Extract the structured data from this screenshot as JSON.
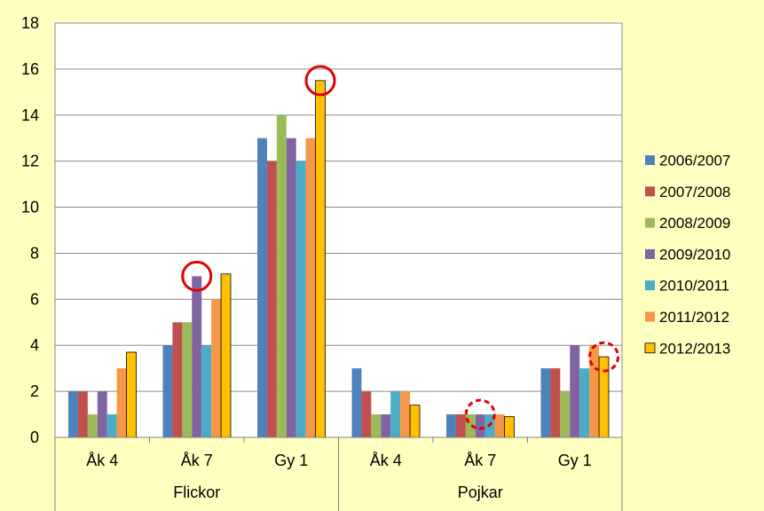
{
  "chart_data": {
    "type": "bar",
    "title": "",
    "xlabel": "",
    "ylabel": "",
    "ylim": [
      0,
      18
    ],
    "yticks": [
      0,
      2,
      4,
      6,
      8,
      10,
      12,
      14,
      16,
      18
    ],
    "ytick_labels": [
      "0",
      "2",
      "4",
      "6",
      "8",
      "10",
      "12",
      "14",
      "16",
      "18"
    ],
    "grid": true,
    "legend_position": "right",
    "groups": [
      {
        "label": "Flickor",
        "categories": [
          "Åk 4",
          "Åk 7",
          "Gy 1"
        ]
      },
      {
        "label": "Pojkar",
        "categories": [
          "Åk 4",
          "Åk 7",
          "Gy 1"
        ]
      }
    ],
    "categories": [
      "Åk 4",
      "Åk 7",
      "Gy 1",
      "Åk 4",
      "Åk 7",
      "Gy 1"
    ],
    "series": [
      {
        "name": "2006/2007",
        "color": "#4F81BD",
        "values": [
          2,
          4,
          13,
          3,
          1,
          3
        ]
      },
      {
        "name": "2007/2008",
        "color": "#C0504D",
        "values": [
          2,
          5,
          12,
          2,
          1,
          3
        ]
      },
      {
        "name": "2008/2009",
        "color": "#9BBB59",
        "values": [
          1,
          5,
          14,
          1,
          1,
          2
        ]
      },
      {
        "name": "2009/2010",
        "color": "#8064A2",
        "values": [
          2,
          7,
          13,
          1,
          1,
          4
        ]
      },
      {
        "name": "2010/2011",
        "color": "#4BACC6",
        "values": [
          1,
          4,
          12,
          2,
          1,
          3
        ]
      },
      {
        "name": "2011/2012",
        "color": "#F79646",
        "values": [
          3,
          6,
          13,
          2,
          1,
          4
        ]
      },
      {
        "name": "2012/2013",
        "color": "#FFC000",
        "values": [
          3.7,
          7.1,
          15.5,
          1.4,
          0.9,
          3.5
        ]
      }
    ],
    "annotations": [
      {
        "shape": "circle",
        "style": "solid",
        "category_index": 1,
        "series": "2009/2010",
        "value": 7
      },
      {
        "shape": "circle",
        "style": "solid",
        "category_index": 2,
        "series": "2012/2013",
        "value": 15.5
      },
      {
        "shape": "circle",
        "style": "dashed",
        "category_index": 4,
        "series": "2009/2010",
        "value": 1
      },
      {
        "shape": "circle",
        "style": "dashed",
        "category_index": 5,
        "series": "2012/2013",
        "value": 3.5
      }
    ],
    "annotation_color": "#E00000"
  }
}
